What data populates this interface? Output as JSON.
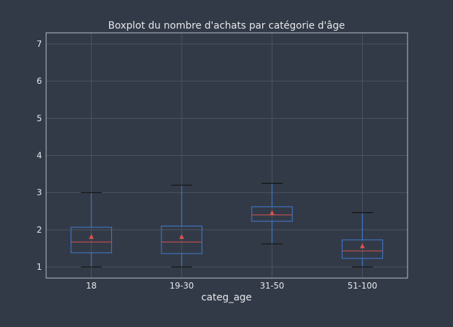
{
  "chart_data": {
    "type": "box",
    "title": "Boxplot du nombre d'achats par catégorie d'âge",
    "xlabel": "categ_age",
    "ylabel": "",
    "categories": [
      "18",
      "19-30",
      "31-50",
      "51-100"
    ],
    "ylim": [
      0.7,
      7.3
    ],
    "yticks": [
      "1",
      "2",
      "3",
      "4",
      "5",
      "6",
      "7"
    ],
    "grid": true,
    "boxes": [
      {
        "whislo": 1.0,
        "q1": 1.38,
        "median": 1.67,
        "q3": 2.07,
        "whishi": 3.0,
        "mean": 1.82
      },
      {
        "whislo": 1.0,
        "q1": 1.36,
        "median": 1.67,
        "q3": 2.1,
        "whishi": 3.2,
        "mean": 1.82
      },
      {
        "whislo": 1.62,
        "q1": 2.23,
        "median": 2.4,
        "q3": 2.62,
        "whishi": 3.25,
        "mean": 2.46
      },
      {
        "whislo": 1.0,
        "q1": 1.23,
        "median": 1.43,
        "q3": 1.73,
        "whishi": 2.46,
        "mean": 1.57
      }
    ],
    "colors": {
      "background": "#333a47",
      "box": "#3d7fd6",
      "median": "#d9534f",
      "mean": "#d9534f",
      "caps": "#111111",
      "grid": "#4b5463",
      "spine": "#b9c0cc",
      "text": "#e6e8ec"
    }
  }
}
